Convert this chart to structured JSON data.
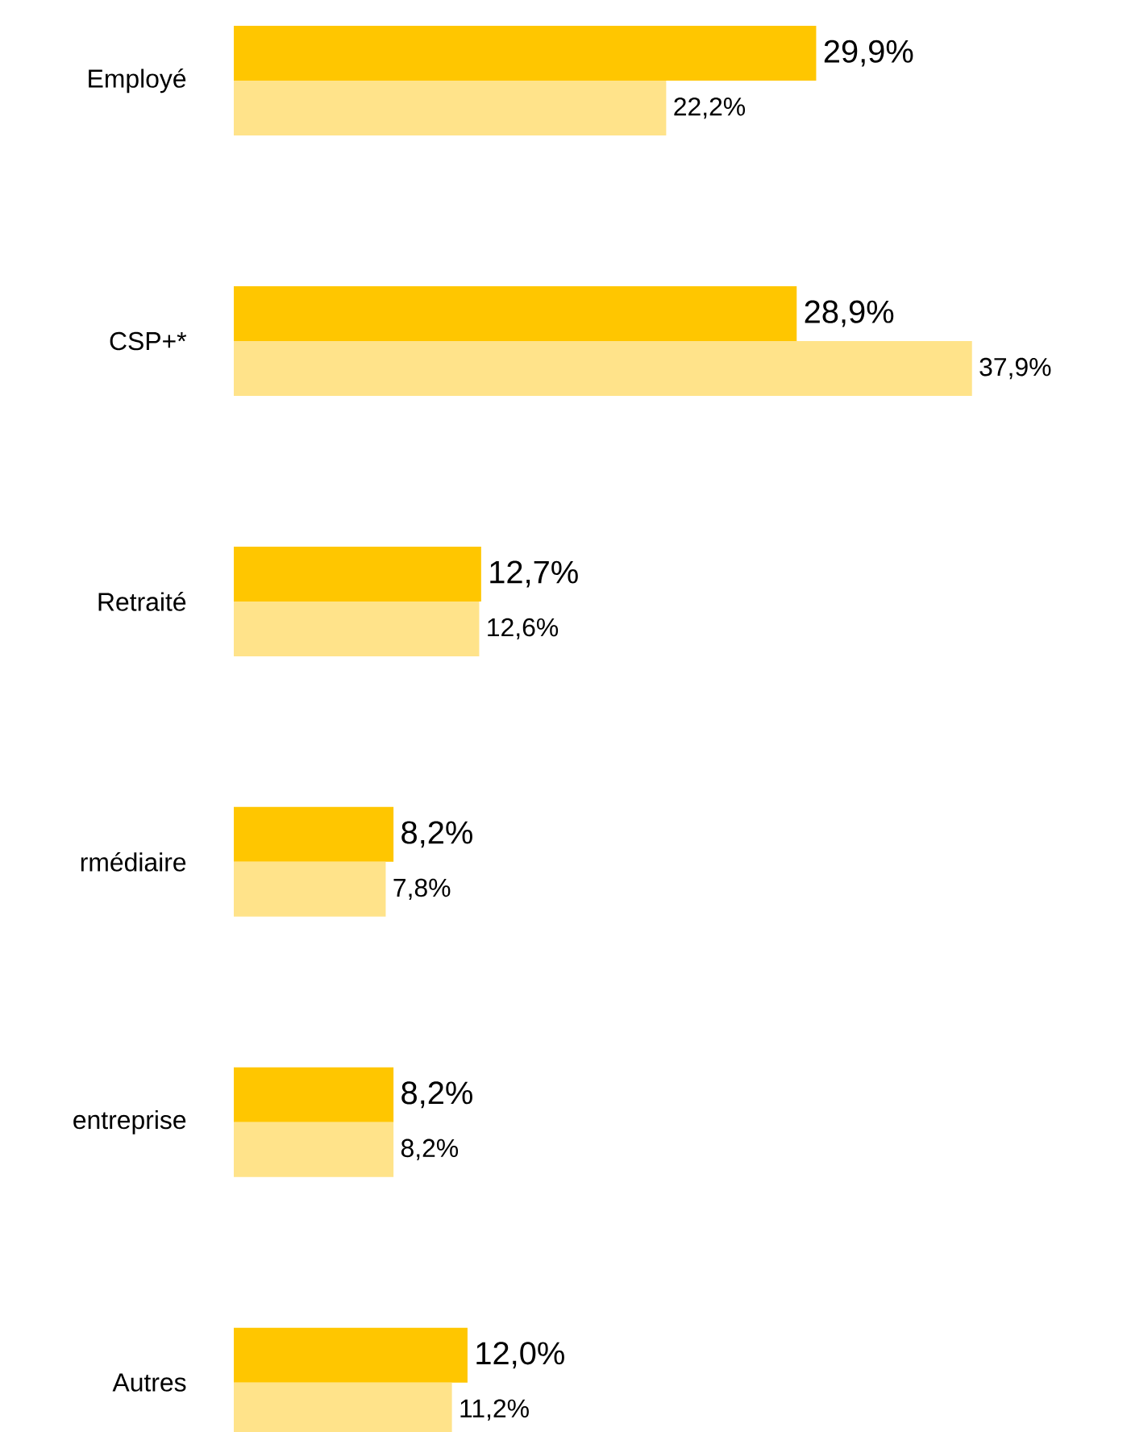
{
  "chart_data": {
    "type": "bar",
    "orientation": "horizontal",
    "categories": [
      "Employé",
      "CSP+*",
      "Retraité",
      "rmédiaire",
      "entreprise",
      "Autres"
    ],
    "series": [
      {
        "color": "#ffc600",
        "values": [
          29.9,
          28.9,
          12.7,
          8.2,
          8.2,
          12.0
        ],
        "value_labels": [
          "29,9%",
          "28,9%",
          "12,7%",
          "8,2%",
          "8,2%",
          "12,0%"
        ]
      },
      {
        "color": "#ffe38a",
        "values": [
          22.2,
          37.9,
          12.6,
          7.8,
          8.2,
          11.2
        ],
        "value_labels": [
          "22,2%",
          "37,9%",
          "12,6%",
          "7,8%",
          "8,2%",
          "11,2%"
        ]
      }
    ]
  }
}
